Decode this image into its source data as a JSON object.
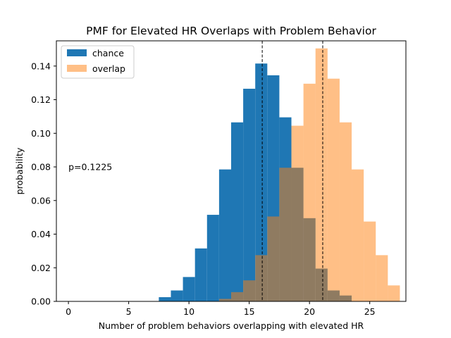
{
  "chart_data": {
    "type": "bar",
    "title": "PMF for Elevated HR Overlaps with Problem Behavior",
    "xlabel": "Number of problem behaviors overlapping with elevated HR",
    "ylabel": "probability",
    "xlim": [
      -1.0,
      28.0
    ],
    "ylim": [
      0.0,
      0.155
    ],
    "xticks": [
      0,
      5,
      10,
      15,
      20,
      25
    ],
    "yticks": [
      0.0,
      0.02,
      0.04,
      0.06,
      0.08,
      0.1,
      0.12,
      0.14
    ],
    "xtick_labels": [
      "0",
      "5",
      "10",
      "15",
      "20",
      "25"
    ],
    "ytick_labels": [
      "0.00",
      "0.02",
      "0.04",
      "0.06",
      "0.08",
      "0.10",
      "0.12",
      "0.14"
    ],
    "bin_width": 1,
    "series": [
      {
        "name": "chance",
        "color": "#1f77b4",
        "alpha": 1.0,
        "bin_left_edges": [
          7.5,
          8.5,
          9.5,
          10.5,
          11.5,
          12.5,
          13.5,
          14.5,
          15.5,
          16.5,
          17.5,
          18.5,
          19.5,
          20.5,
          21.5,
          22.5
        ],
        "values": [
          0.0025,
          0.0065,
          0.0145,
          0.0315,
          0.0515,
          0.0785,
          0.1065,
          0.1265,
          0.1415,
          0.1345,
          0.1095,
          0.0795,
          0.0495,
          0.0195,
          0.0065,
          0.0035
        ]
      },
      {
        "name": "overlap",
        "color": "#ff7f0e",
        "alpha": 0.5,
        "bin_left_edges": [
          12.5,
          13.5,
          14.5,
          15.5,
          16.5,
          17.5,
          18.5,
          19.5,
          20.5,
          21.5,
          22.5,
          23.5,
          24.5,
          25.5,
          26.5
        ],
        "values": [
          0.0015,
          0.0055,
          0.0125,
          0.0275,
          0.0505,
          0.0795,
          0.1045,
          0.1295,
          0.1505,
          0.1325,
          0.1065,
          0.0785,
          0.0475,
          0.0275,
          0.0095
        ]
      }
    ],
    "vlines": [
      16.08,
      21.1
    ],
    "annotation": {
      "text": "p=0.1225",
      "x": 0.0,
      "y": 0.08
    },
    "legend": {
      "placement": "upper left",
      "entries": [
        "chance",
        "overlap"
      ]
    },
    "grid": false
  }
}
